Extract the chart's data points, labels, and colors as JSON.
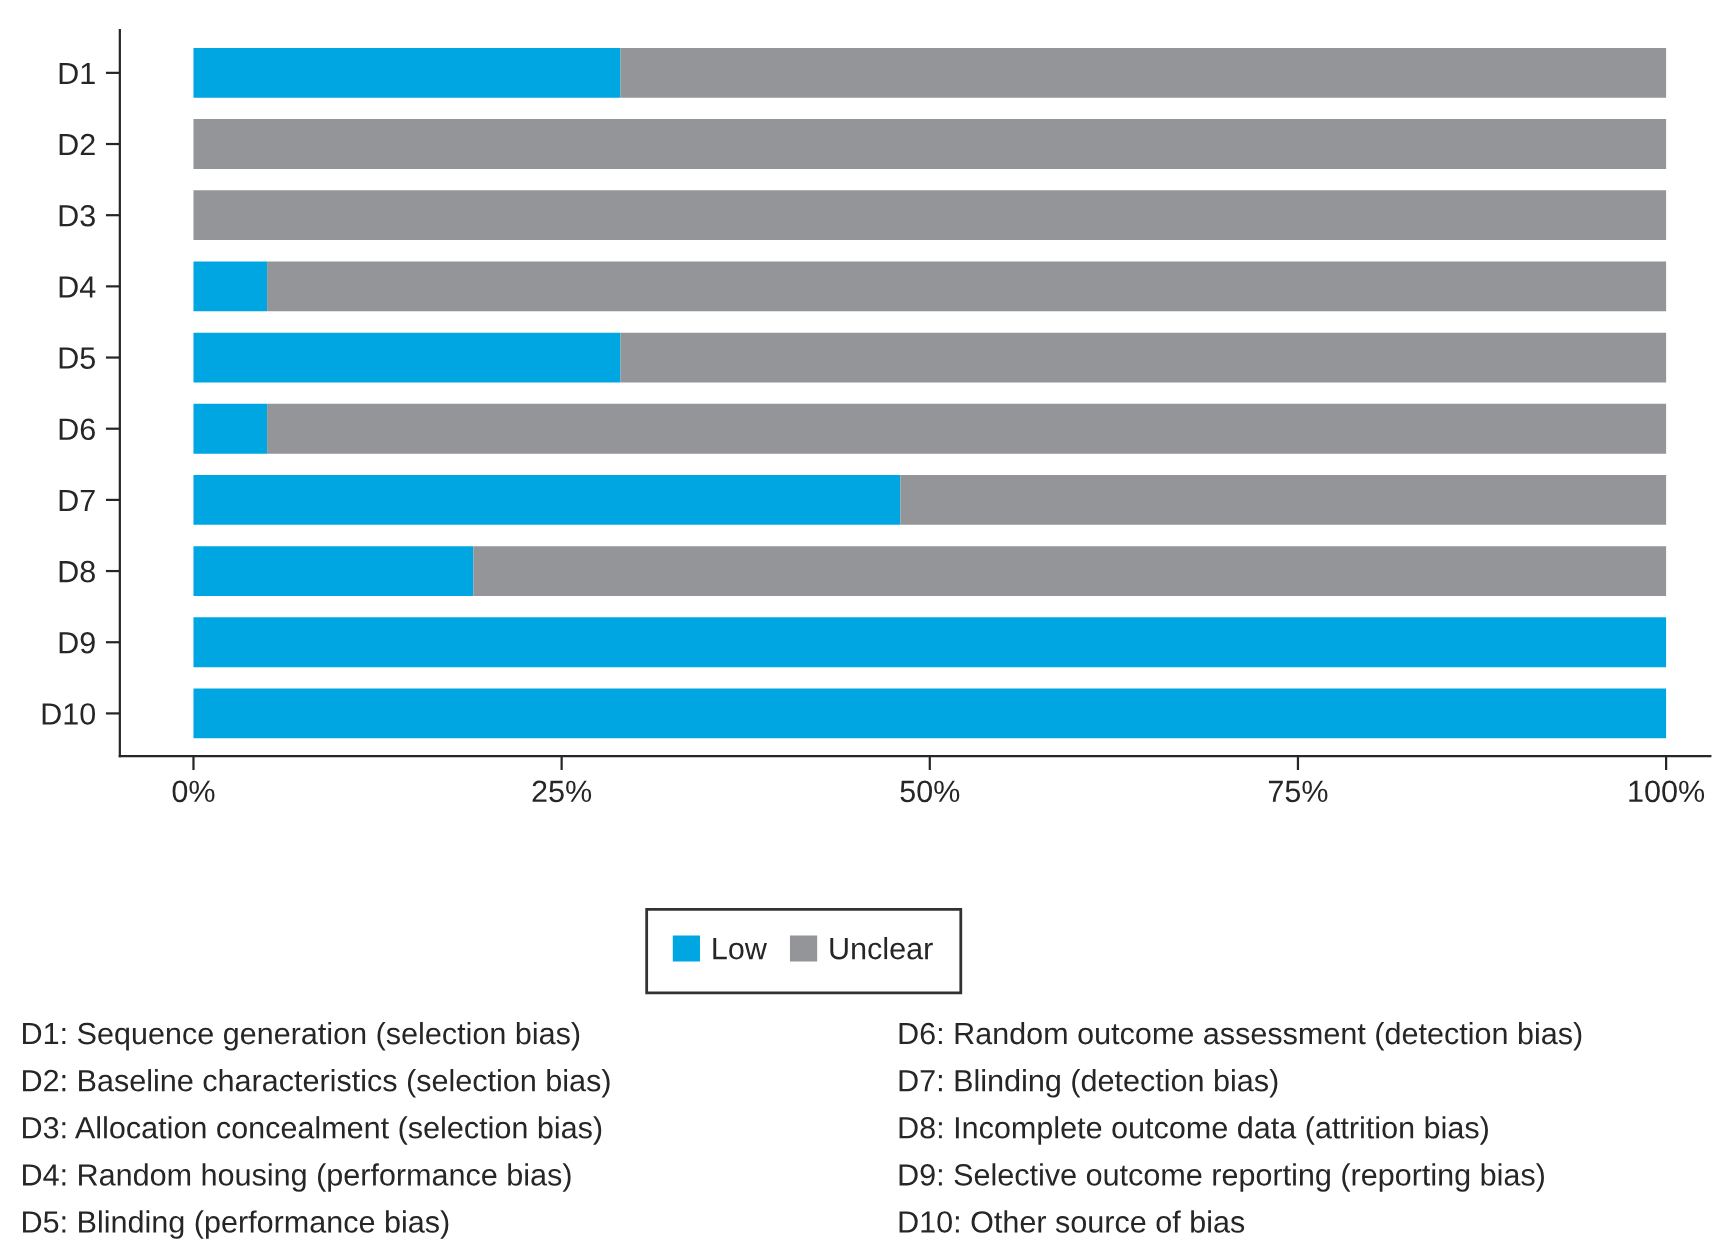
{
  "chart_data": {
    "type": "bar",
    "orientation": "horizontal",
    "stacked": true,
    "categories": [
      "D1",
      "D2",
      "D3",
      "D4",
      "D5",
      "D6",
      "D7",
      "D8",
      "D9",
      "D10"
    ],
    "series": [
      {
        "name": "Low",
        "color": "#00a6e2",
        "values": [
          29,
          0,
          0,
          5,
          29,
          5,
          48,
          19,
          100,
          100
        ]
      },
      {
        "name": "Unclear",
        "color": "#939598",
        "values": [
          71,
          100,
          100,
          95,
          71,
          95,
          52,
          81,
          0,
          0
        ]
      }
    ],
    "xlim": [
      -5,
      103
    ],
    "xticks": [
      {
        "value": 0,
        "label": "0%"
      },
      {
        "value": 25,
        "label": "25%"
      },
      {
        "value": 50,
        "label": "50%"
      },
      {
        "value": 75,
        "label": "75%"
      },
      {
        "value": 100,
        "label": "100%"
      }
    ],
    "grid": false,
    "legend": "bottom",
    "annotations": [
      "D1: Sequence generation (selection bias)",
      "D2: Baseline characteristics (selection bias)",
      "D3: Allocation concealment (selection bias)",
      "D4: Random housing (performance bias)",
      "D5: Blinding (performance bias)",
      "D6: Random outcome assessment (detection bias)",
      "D7: Blinding (detection bias)",
      "D8: Incomplete outcome data (attrition bias)",
      "D9: Selective outcome reporting (reporting bias)",
      "D10: Other source of bias"
    ]
  }
}
